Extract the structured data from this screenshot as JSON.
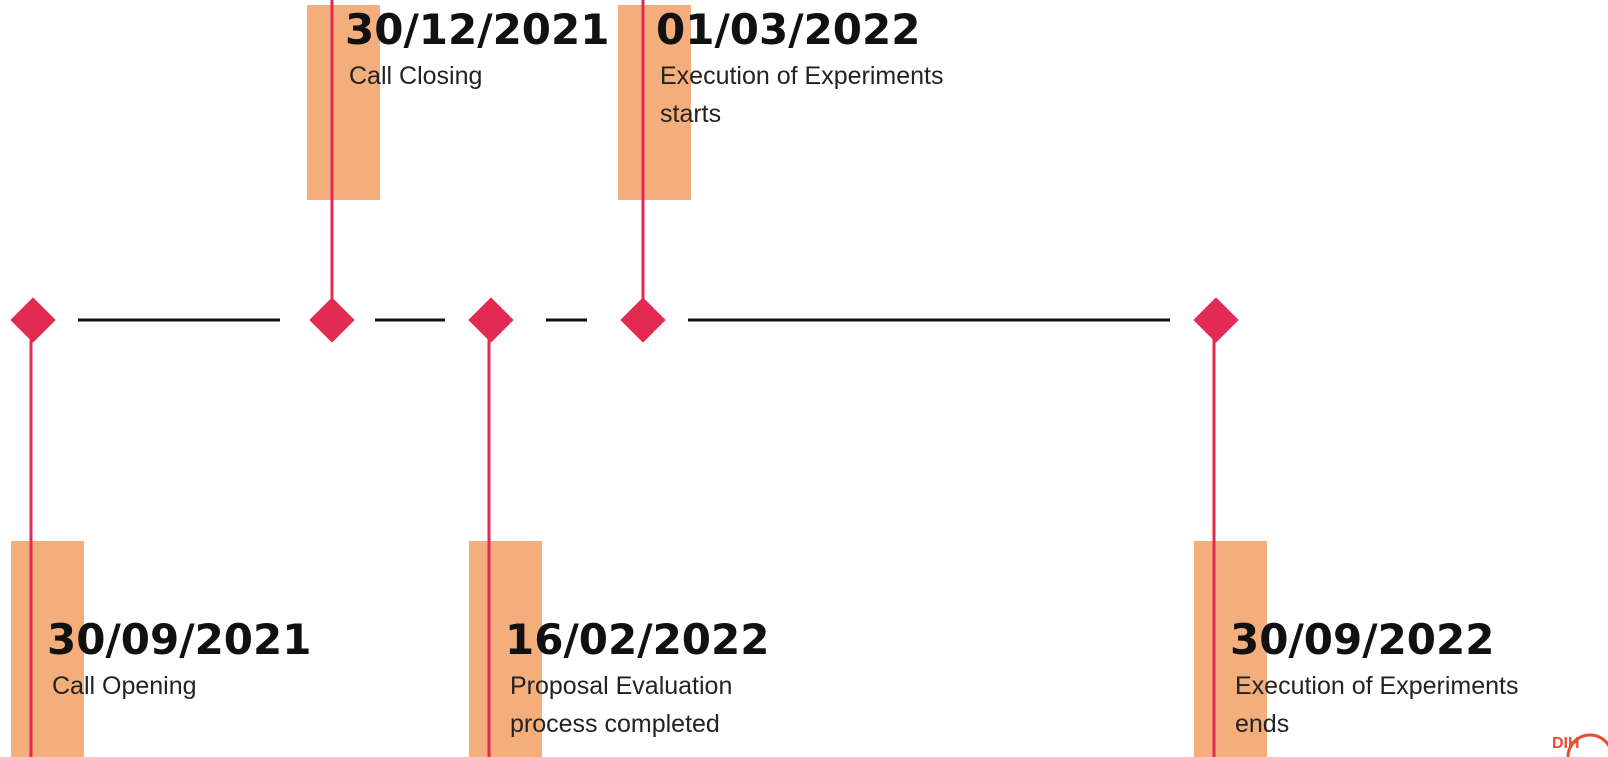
{
  "events": [
    {
      "date": "30/09/2021",
      "label": "Call Opening"
    },
    {
      "date": "30/12/2021",
      "label": "Call Closing"
    },
    {
      "date": "16/02/2022",
      "label": "Proposal Evaluation process completed"
    },
    {
      "date": "01/03/2022",
      "label": "Execution of Experiments starts"
    },
    {
      "date": "30/09/2022",
      "label": "Execution of Experiments ends"
    }
  ],
  "logo": "DIH"
}
